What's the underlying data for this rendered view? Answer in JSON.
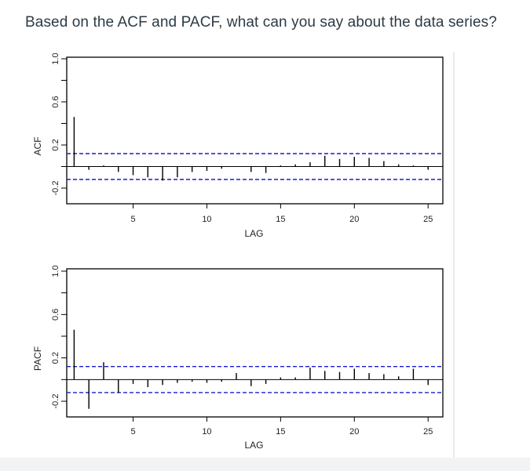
{
  "question": "Based on the ACF and PACF, what can you say about the data series?",
  "chart_data": [
    {
      "type": "bar",
      "ylabel": "ACF",
      "xlabel": "LAG",
      "ylim": [
        -0.35,
        1.05
      ],
      "xlim": [
        0.5,
        26
      ],
      "yticks": [
        -0.2,
        0.2,
        0.6,
        1.0
      ],
      "ytick_labels": [
        "-0.2",
        "0.2",
        "0.6",
        "1.0"
      ],
      "xticks": [
        5,
        10,
        15,
        20,
        25
      ],
      "xtick_labels": [
        "5",
        "10",
        "15",
        "20",
        "25"
      ],
      "confidence_band": [
        0.12,
        -0.12
      ],
      "lags": [
        1,
        2,
        3,
        4,
        5,
        6,
        7,
        8,
        9,
        10,
        11,
        12,
        13,
        14,
        15,
        16,
        17,
        18,
        19,
        20,
        21,
        22,
        23,
        24,
        25
      ],
      "values": [
        0.46,
        -0.03,
        0.01,
        -0.05,
        -0.08,
        -0.1,
        -0.13,
        -0.1,
        -0.05,
        -0.04,
        -0.02,
        0.0,
        -0.05,
        -0.06,
        0.01,
        0.02,
        0.04,
        0.1,
        0.07,
        0.09,
        0.08,
        0.05,
        0.02,
        0.01,
        -0.03
      ],
      "grid": false
    },
    {
      "type": "bar",
      "ylabel": "PACF",
      "xlabel": "LAG",
      "ylim": [
        -0.35,
        1.05
      ],
      "xlim": [
        0.5,
        26
      ],
      "yticks": [
        -0.2,
        0.2,
        0.6,
        1.0
      ],
      "ytick_labels": [
        "-0.2",
        "0.2",
        "0.6",
        "1.0"
      ],
      "xticks": [
        5,
        10,
        15,
        20,
        25
      ],
      "xtick_labels": [
        "5",
        "10",
        "15",
        "20",
        "25"
      ],
      "confidence_band": [
        0.12,
        -0.12
      ],
      "lags": [
        1,
        2,
        3,
        4,
        5,
        6,
        7,
        8,
        9,
        10,
        11,
        12,
        13,
        14,
        15,
        16,
        17,
        18,
        19,
        20,
        21,
        22,
        23,
        24,
        25
      ],
      "values": [
        0.46,
        -0.27,
        0.16,
        -0.12,
        -0.04,
        -0.07,
        -0.05,
        -0.03,
        -0.02,
        -0.03,
        -0.02,
        0.06,
        -0.06,
        -0.04,
        0.02,
        0.02,
        0.11,
        0.08,
        0.07,
        0.1,
        0.06,
        0.05,
        0.03,
        0.1,
        -0.05
      ],
      "grid": false
    }
  ]
}
